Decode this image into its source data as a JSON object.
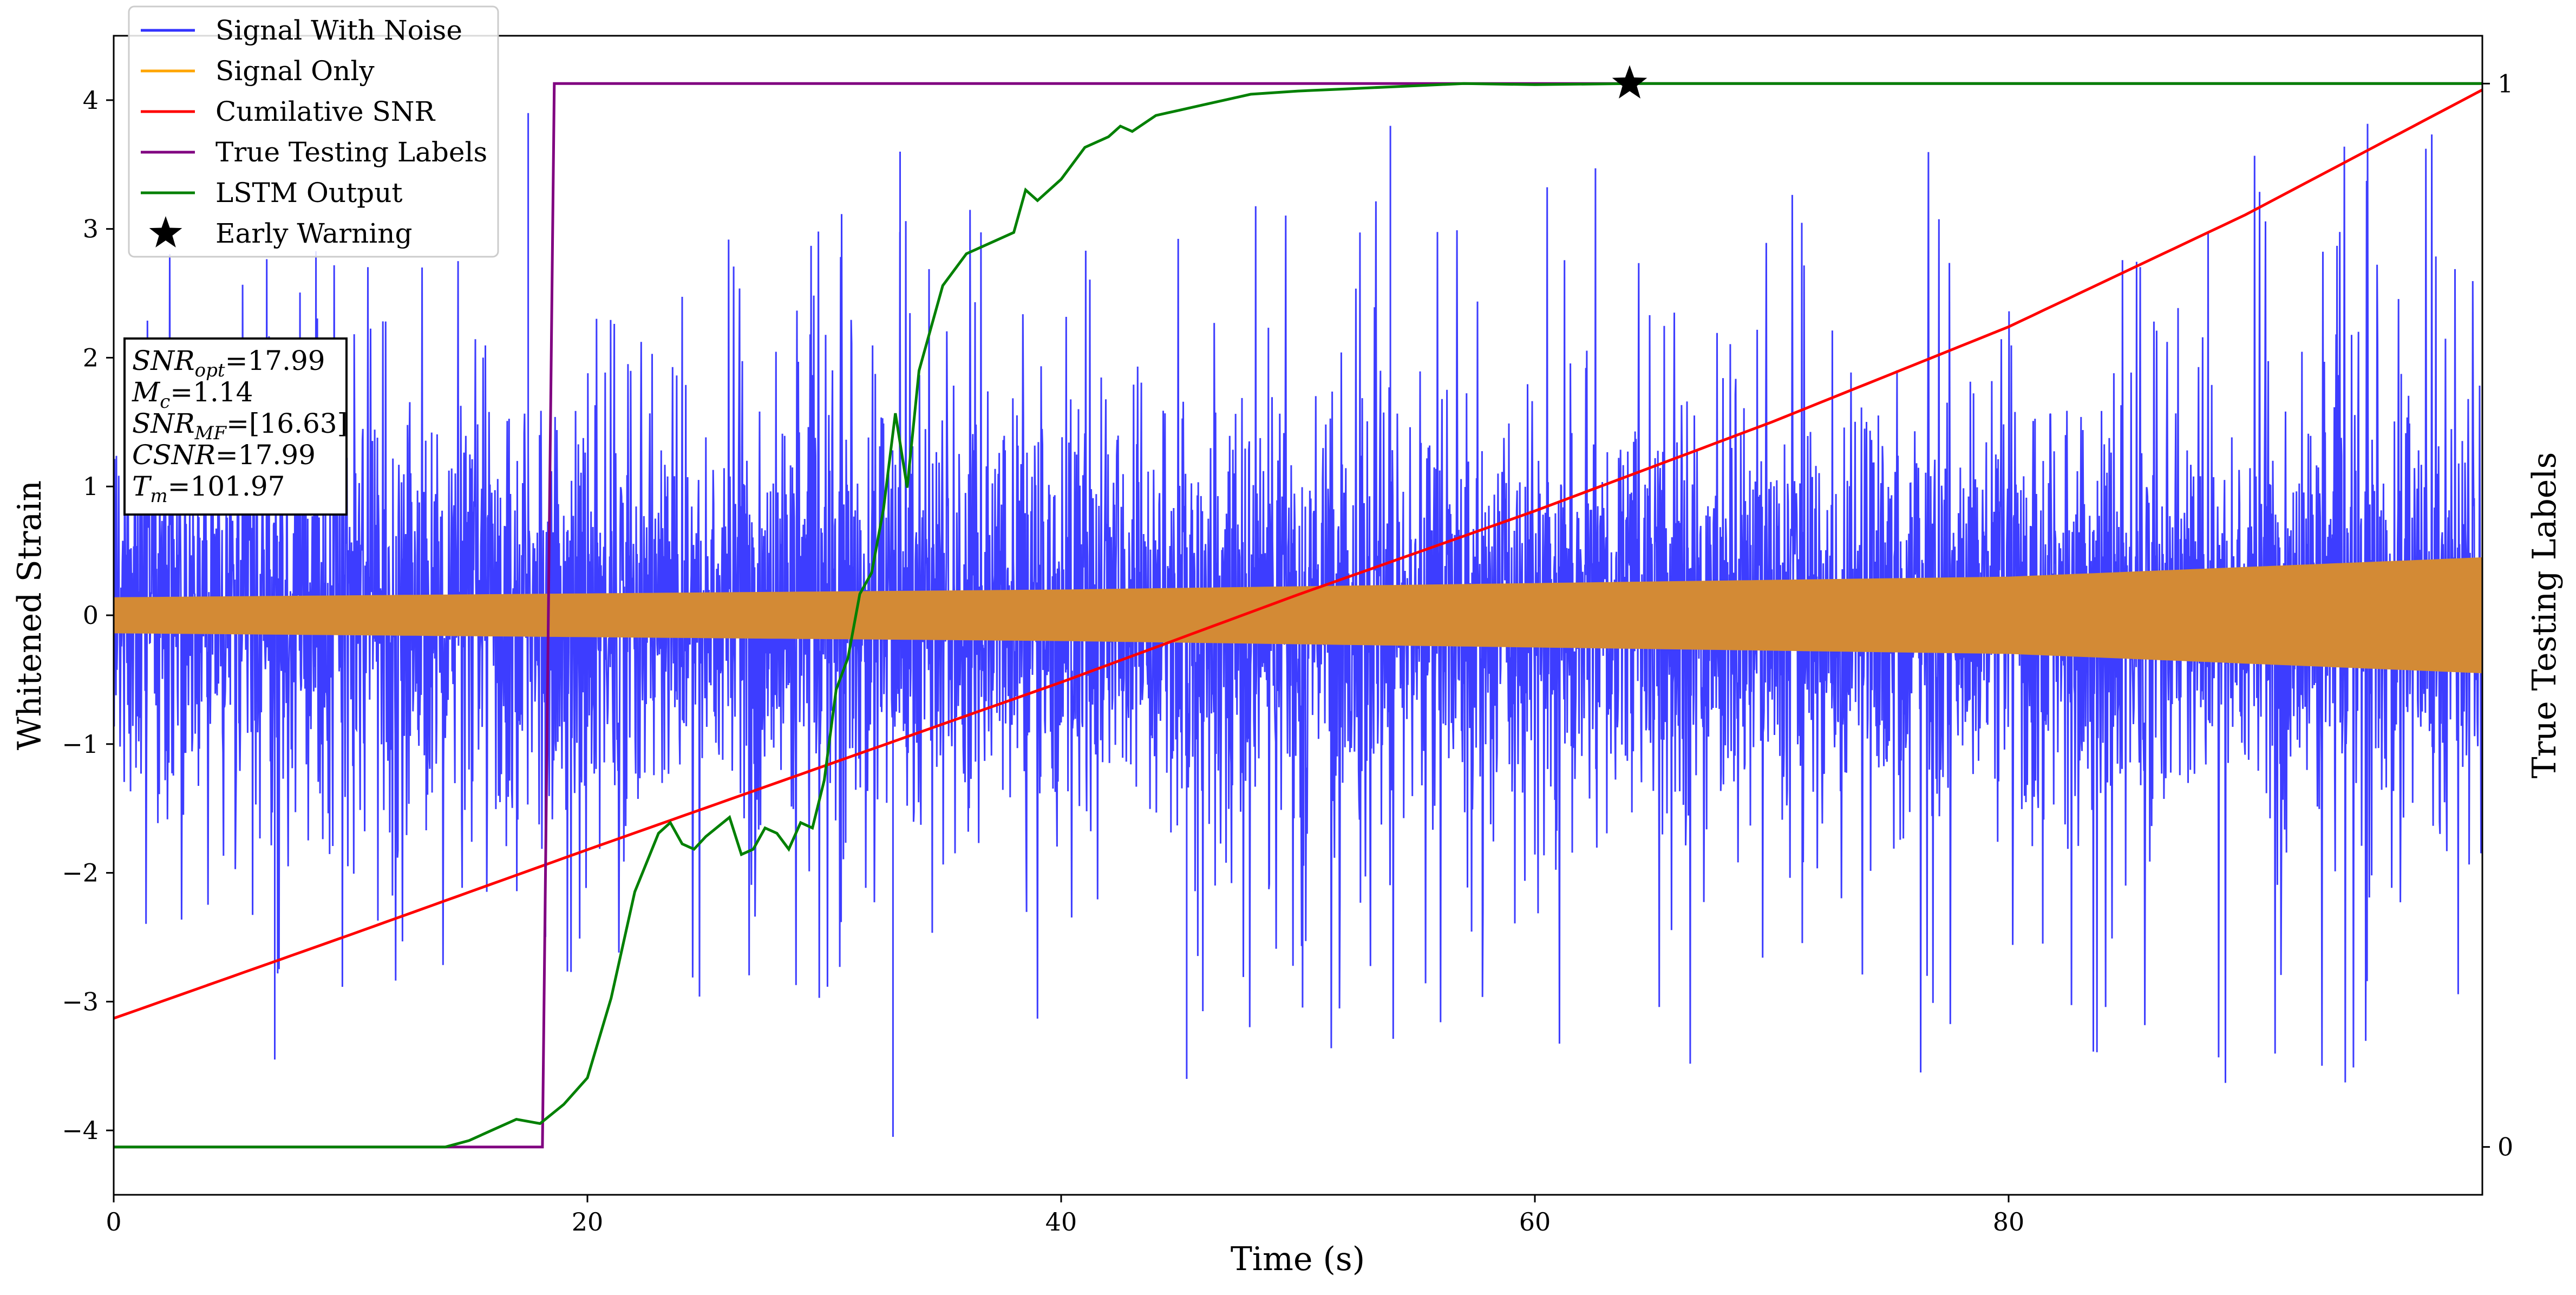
{
  "chart_data": {
    "type": "line",
    "xlabel": "Time (s)",
    "ylabel": "Whitened Strain",
    "y2label": "True Testing Labels",
    "xlim": [
      0,
      100
    ],
    "ylim": [
      -4.5,
      4.5
    ],
    "y2lim": [
      -0.045,
      1.045
    ],
    "x_ticks": [
      0,
      20,
      40,
      60,
      80
    ],
    "y_ticks": [
      -4,
      -3,
      -2,
      -1,
      0,
      1,
      2,
      3,
      4
    ],
    "y2_ticks": [
      0,
      1
    ],
    "legend_position": "upper-left",
    "legend": [
      {
        "label": "Signal With Noise",
        "color": "#3333ff",
        "marker": "line"
      },
      {
        "label": "Signal Only",
        "color": "#ffa500",
        "marker": "line"
      },
      {
        "label": "Cumilative SNR",
        "color": "#ff0000",
        "marker": "line"
      },
      {
        "label": "True Testing Labels",
        "color": "#800080",
        "marker": "line"
      },
      {
        "label": "LSTM Output",
        "color": "#008000",
        "marker": "line"
      },
      {
        "label": "Early Warning",
        "color": "#000000",
        "marker": "star"
      }
    ],
    "series": [
      {
        "name": "Signal With Noise",
        "axis": "left",
        "color": "#3333ff",
        "description_envelope": {
          "x": [
            0,
            100
          ],
          "core_amplitude": [
            1.0,
            1.0
          ],
          "spike_max": [
            2.8,
            3.9
          ]
        },
        "notable_peaks": [
          {
            "x": 17.5,
            "y": 3.9
          },
          {
            "x": 33.2,
            "y": 3.6
          },
          {
            "x": 53.9,
            "y": 3.8
          },
          {
            "x": 45.3,
            "y": -3.6
          },
          {
            "x": 32.9,
            "y": -4.05
          },
          {
            "x": 6.8,
            "y": -3.45
          }
        ]
      },
      {
        "name": "Signal Only",
        "axis": "left",
        "color": "#ffa500",
        "band_color": "#d38a35",
        "amplitude_x": [
          0,
          20,
          40,
          60,
          80,
          100
        ],
        "amplitude_y": [
          0.14,
          0.17,
          0.2,
          0.25,
          0.3,
          0.45
        ]
      },
      {
        "name": "Cumilative SNR",
        "axis": "left",
        "color": "#ff0000",
        "x": [
          0,
          10,
          20,
          30,
          40,
          50,
          60,
          70,
          80,
          90,
          100
        ],
        "y": [
          -3.13,
          -2.48,
          -1.82,
          -1.17,
          -0.52,
          0.16,
          0.81,
          1.5,
          2.24,
          3.11,
          4.08
        ]
      },
      {
        "name": "True Testing Labels",
        "axis": "right",
        "color": "#800080",
        "x": [
          0,
          18.1,
          18.6,
          64,
          100
        ],
        "y": [
          0,
          0,
          1,
          1,
          1
        ]
      },
      {
        "name": "LSTM Output",
        "axis": "right",
        "color": "#008000",
        "x": [
          0,
          14,
          15,
          16,
          17,
          18,
          19,
          20,
          21,
          22,
          23,
          23.5,
          24,
          24.5,
          25,
          26,
          26.5,
          27,
          27.5,
          28,
          28.5,
          29,
          29.5,
          30,
          30.5,
          31,
          31.5,
          32,
          32.5,
          33,
          33.5,
          34,
          35,
          36,
          37,
          38,
          38.5,
          39,
          40,
          41,
          42,
          42.5,
          43,
          44,
          45,
          46,
          47,
          48,
          50,
          52,
          54,
          57,
          60,
          64,
          70,
          80,
          100
        ],
        "y": [
          0,
          0,
          0.006,
          0.016,
          0.026,
          0.022,
          0.04,
          0.065,
          0.14,
          0.24,
          0.295,
          0.305,
          0.285,
          0.28,
          0.292,
          0.31,
          0.275,
          0.28,
          0.3,
          0.295,
          0.28,
          0.305,
          0.3,
          0.345,
          0.43,
          0.46,
          0.52,
          0.54,
          0.6,
          0.69,
          0.62,
          0.73,
          0.81,
          0.84,
          0.85,
          0.86,
          0.9,
          0.89,
          0.91,
          0.94,
          0.95,
          0.96,
          0.955,
          0.97,
          0.975,
          0.98,
          0.985,
          0.99,
          0.993,
          0.995,
          0.997,
          1.0,
          0.999,
          1.0,
          1.0,
          1.0,
          1.0
        ]
      }
    ],
    "markers": [
      {
        "name": "Early Warning",
        "axis": "right",
        "x": 64,
        "y": 1.0,
        "marker": "star",
        "color": "#000000"
      }
    ],
    "annotation": {
      "lines": [
        {
          "base": "SNR",
          "sub": "opt",
          "value": "=17.99"
        },
        {
          "base": "M",
          "sub": "c",
          "value": "=1.14"
        },
        {
          "base": "SNR",
          "sub": "MF",
          "value": "=[16.63]"
        },
        {
          "base": "CSNR",
          "sub": "",
          "value": "=17.99"
        },
        {
          "base": "T",
          "sub": "m",
          "value": "=101.97"
        }
      ]
    }
  }
}
